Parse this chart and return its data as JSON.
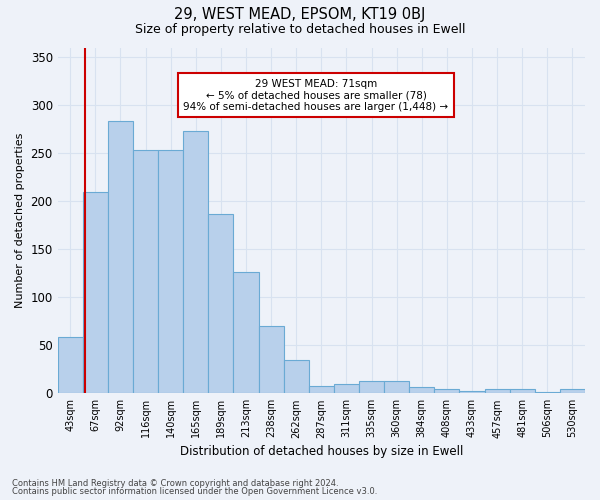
{
  "title": "29, WEST MEAD, EPSOM, KT19 0BJ",
  "subtitle": "Size of property relative to detached houses in Ewell",
  "xlabel": "Distribution of detached houses by size in Ewell",
  "ylabel": "Number of detached properties",
  "footer_line1": "Contains HM Land Registry data © Crown copyright and database right 2024.",
  "footer_line2": "Contains public sector information licensed under the Open Government Licence v3.0.",
  "categories": [
    "43sqm",
    "67sqm",
    "92sqm",
    "116sqm",
    "140sqm",
    "165sqm",
    "189sqm",
    "213sqm",
    "238sqm",
    "262sqm",
    "287sqm",
    "311sqm",
    "335sqm",
    "360sqm",
    "384sqm",
    "408sqm",
    "433sqm",
    "457sqm",
    "481sqm",
    "506sqm",
    "530sqm"
  ],
  "values": [
    59,
    210,
    283,
    253,
    253,
    273,
    187,
    126,
    70,
    35,
    8,
    10,
    13,
    13,
    7,
    5,
    2,
    4,
    4,
    1,
    4
  ],
  "bar_color": "#b8d0eb",
  "bar_edge_color": "#6aaad4",
  "background_color": "#eef2f9",
  "grid_color": "#d8e2f0",
  "annotation_line1": "29 WEST MEAD: 71sqm",
  "annotation_line2": "← 5% of detached houses are smaller (78)",
  "annotation_line3": "94% of semi-detached houses are larger (1,448) →",
  "annotation_box_facecolor": "#ffffff",
  "annotation_box_edgecolor": "#cc0000",
  "vline_color": "#cc0000",
  "vline_x_index": 0.575,
  "ylim_max": 360,
  "yticks": [
    0,
    50,
    100,
    150,
    200,
    250,
    300,
    350
  ]
}
